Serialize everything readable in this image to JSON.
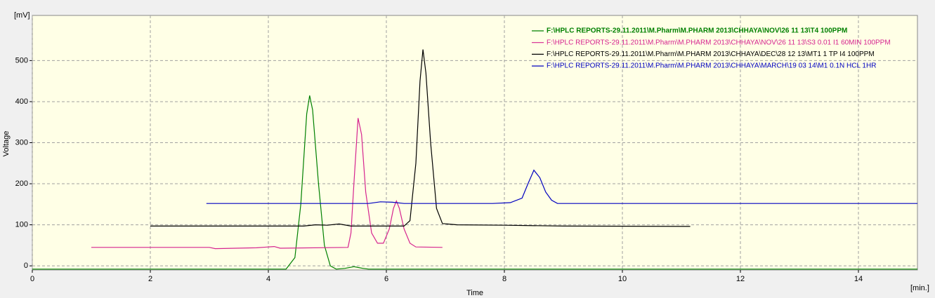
{
  "chart_data": {
    "type": "line",
    "y_unit": "[mV]",
    "x_unit": "[min.]",
    "xlabel": "Time",
    "ylabel": "Voltage",
    "xlim": [
      0,
      15
    ],
    "ylim": [
      -10,
      610
    ],
    "xticks": [
      0,
      2,
      4,
      6,
      8,
      10,
      12,
      14
    ],
    "yticks": [
      0,
      100,
      200,
      300,
      400,
      500
    ],
    "grid": true,
    "background": "#ffffe6",
    "legend": "top-right",
    "series": [
      {
        "name": "F:\\HPLC REPORTS-29.11.2011\\M.Pharm\\M.PHARM 2013\\CHHAYA\\NOV\\26 11 13\\T4 100PPM",
        "color": "#008000",
        "bold": true,
        "x": [
          0,
          4.3,
          4.45,
          4.55,
          4.65,
          4.7,
          4.75,
          4.85,
          4.95,
          5.05,
          5.15,
          5.3,
          5.45,
          5.6,
          5.7,
          15
        ],
        "values": [
          -8,
          -8,
          20,
          150,
          370,
          415,
          380,
          200,
          50,
          0,
          -8,
          -6,
          -2,
          -6,
          -8,
          -8
        ]
      },
      {
        "name": "F:\\HPLC REPORTS-29.11.2011\\M.Pharm\\M.PHARM 2013\\CHHAYA\\NOV\\26 11 13\\S3  0.01 I1  60MIN  100PPM",
        "color": "#d6248f",
        "x": [
          1,
          3.0,
          3.1,
          3.8,
          4.1,
          4.2,
          5.35,
          5.4,
          5.45,
          5.52,
          5.58,
          5.65,
          5.75,
          5.85,
          5.95,
          6.05,
          6.12,
          6.17,
          6.22,
          6.3,
          6.4,
          6.5,
          6.95
        ],
        "values": [
          45,
          45,
          42,
          44,
          47,
          43,
          45,
          80,
          200,
          360,
          320,
          180,
          80,
          55,
          55,
          90,
          140,
          158,
          140,
          90,
          55,
          46,
          45
        ]
      },
      {
        "name": "F:\\HPLC REPORTS-29.11.2011\\M.Pharm\\M.PHARM 2013\\CHHAYA\\DEC\\28 12 13\\MT1  1 TP I4  100PPM",
        "color": "#000000",
        "x": [
          2,
          4.6,
          4.8,
          5.0,
          5.2,
          5.4,
          6.3,
          6.4,
          6.5,
          6.57,
          6.62,
          6.67,
          6.75,
          6.85,
          6.95,
          7.2,
          8.0,
          9.0,
          11.15
        ],
        "values": [
          97,
          97,
          100,
          99,
          102,
          97,
          97,
          110,
          250,
          450,
          527,
          470,
          300,
          140,
          103,
          100,
          99,
          97,
          96
        ]
      },
      {
        "name": "F:\\HPLC REPORTS-29.11.2011\\M.Pharm\\M.PHARM 2013\\CHHAYA\\MARCH\\19 03 14\\M1 0.1N HCL 1HR",
        "color": "#0000c0",
        "x": [
          2.95,
          5.7,
          5.9,
          6.1,
          6.3,
          7.8,
          8.1,
          8.3,
          8.4,
          8.5,
          8.6,
          8.7,
          8.8,
          8.9,
          15
        ],
        "values": [
          152,
          152,
          156,
          155,
          152,
          152,
          154,
          165,
          200,
          233,
          215,
          180,
          160,
          152,
          152
        ]
      }
    ]
  }
}
